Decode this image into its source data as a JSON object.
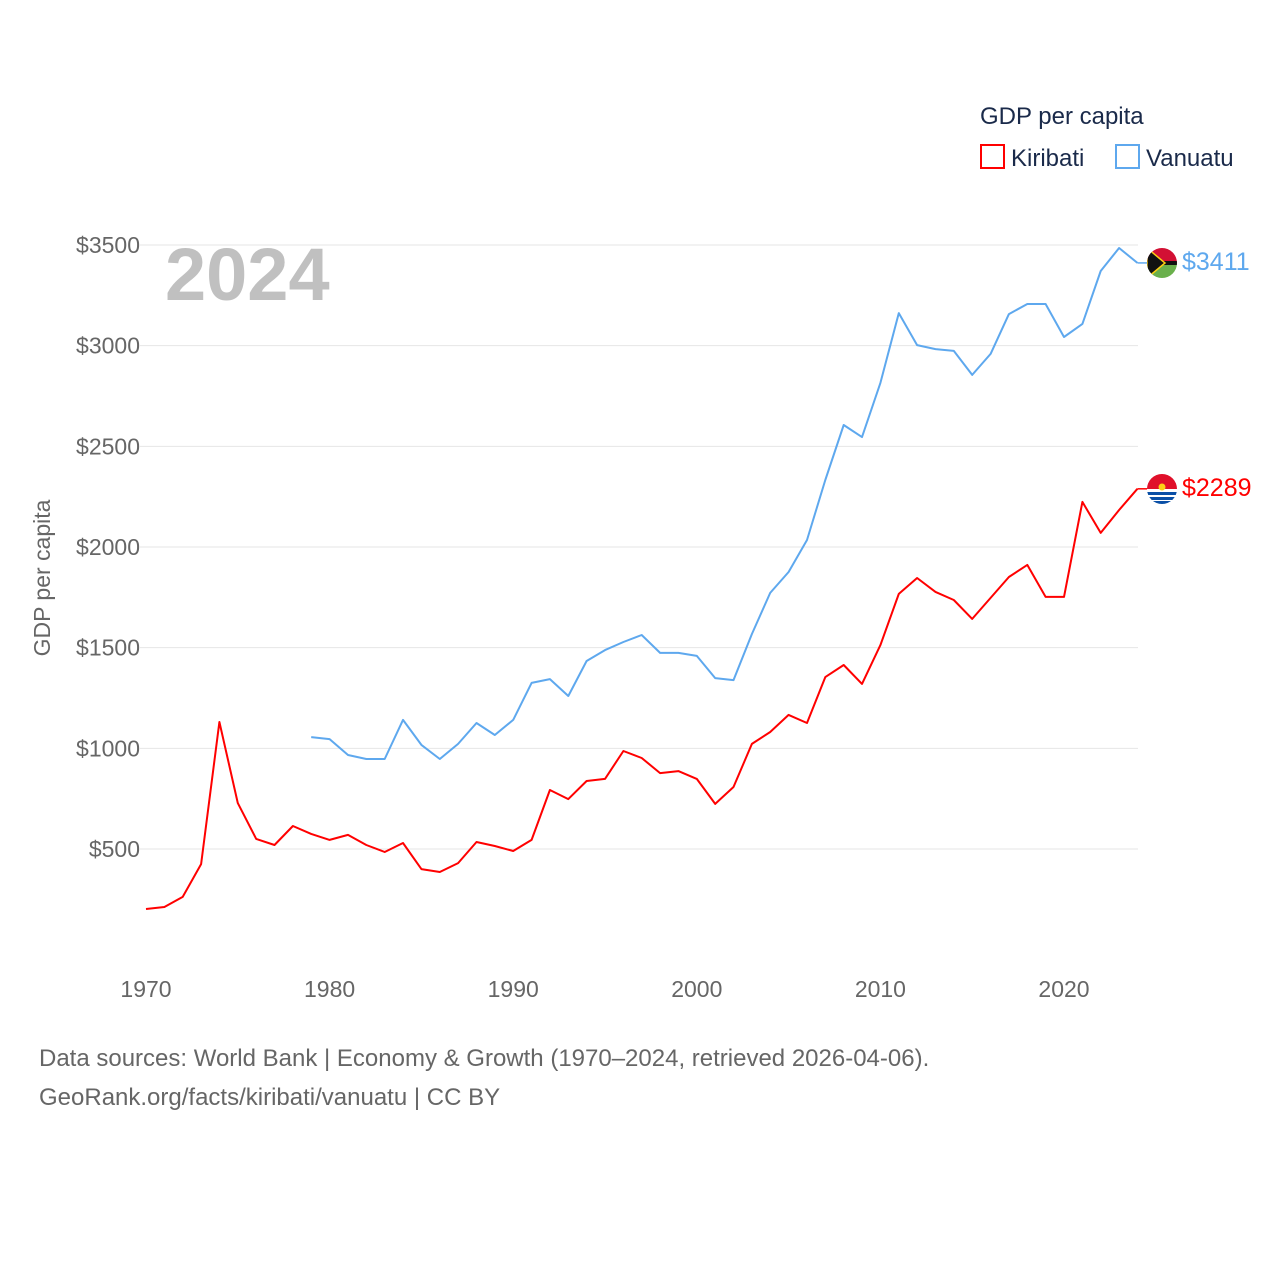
{
  "chart_data": {
    "type": "line",
    "title": "GDP per capita",
    "year_label": "2024",
    "xlabel": "",
    "ylabel": "GDP per capita",
    "xlim": [
      1970,
      2024
    ],
    "ylim": [
      0,
      3500
    ],
    "x_ticks": [
      1970,
      1980,
      1990,
      2000,
      2010,
      2020
    ],
    "x_tick_labels": [
      "1970",
      "1980",
      "1990",
      "2000",
      "2010",
      "2020"
    ],
    "y_ticks": [
      500,
      1000,
      1500,
      2000,
      2500,
      3000,
      3500
    ],
    "y_tick_labels": [
      "$500",
      "$1000",
      "$1500",
      "$2000",
      "$2500",
      "$3000",
      "$3500"
    ],
    "grid": true,
    "legend_position": "top-right",
    "legend_title": "GDP per capita",
    "series": [
      {
        "name": "Kiribati",
        "color": "#ff0000",
        "end_label": "$2289",
        "start_year": 1970,
        "values": [
          202,
          212,
          262,
          425,
          1131,
          728,
          550,
          520,
          614,
          575,
          545,
          570,
          520,
          485,
          530,
          400,
          386,
          430,
          535,
          515,
          490,
          545,
          793,
          748,
          838,
          848,
          987,
          952,
          877,
          887,
          848,
          724,
          808,
          1022,
          1081,
          1166,
          1126,
          1354,
          1414,
          1320,
          1513,
          1767,
          1846,
          1777,
          1737,
          1643,
          1747,
          1851,
          1911,
          1752,
          1752,
          2224,
          2070,
          2184,
          2289
        ]
      },
      {
        "name": "Vanuatu",
        "color": "#5ea8ee",
        "end_label": "$3411",
        "start_year": 1979,
        "values": [
          1056,
          1046,
          967,
          947,
          947,
          1141,
          1017,
          947,
          1022,
          1126,
          1066,
          1141,
          1325,
          1344,
          1260,
          1434,
          1488,
          1528,
          1563,
          1474,
          1474,
          1459,
          1349,
          1339,
          1568,
          1772,
          1876,
          2035,
          2333,
          2606,
          2546,
          2815,
          3162,
          3003,
          2983,
          2974,
          2855,
          2959,
          3157,
          3207,
          3207,
          3043,
          3108,
          3371,
          3485,
          3411
        ]
      }
    ]
  },
  "footer": {
    "line1": "Data sources: World Bank | Economy & Growth (1970–2024, retrieved 2026-04-06).",
    "line2": "GeoRank.org/facts/kiribati/vanuatu | CC BY"
  }
}
